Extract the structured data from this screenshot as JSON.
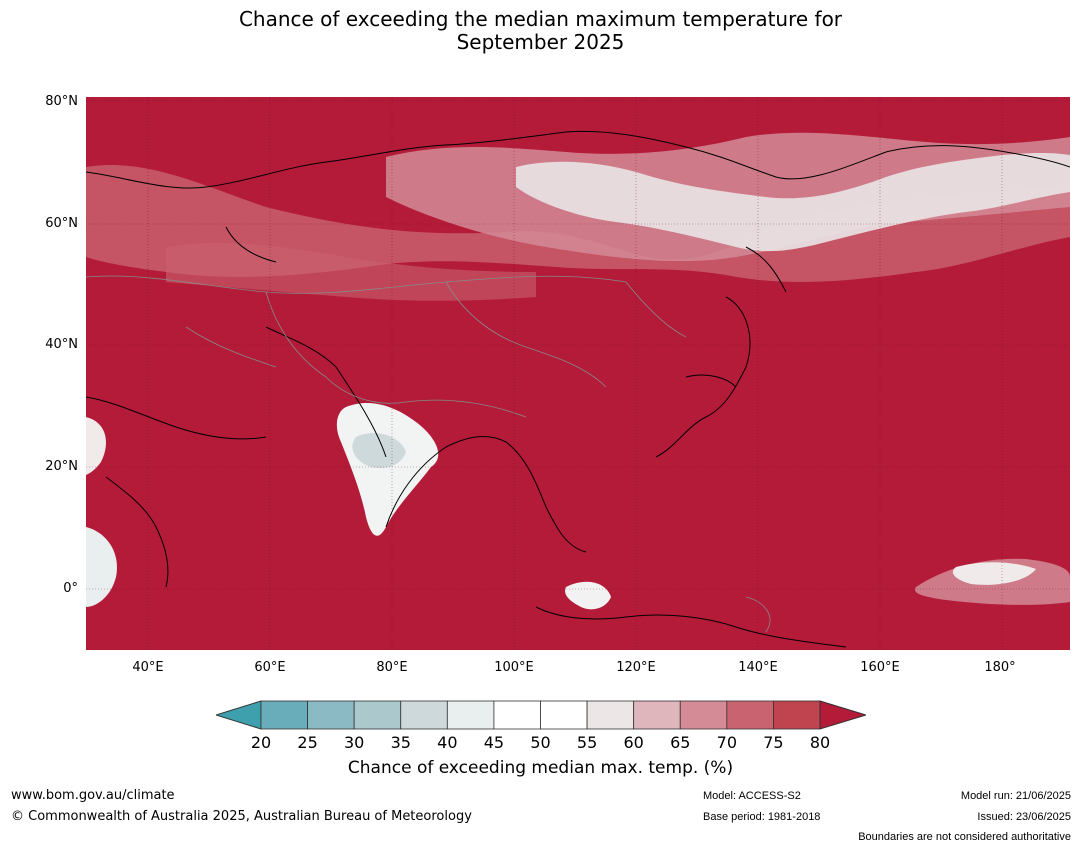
{
  "title_line1": "Chance of exceeding the median maximum temperature for",
  "title_line2": "September 2025",
  "map": {
    "background_color": "#b41b39",
    "lat_labels": [
      "80°N",
      "60°N",
      "40°N",
      "20°N",
      "0°"
    ],
    "lon_labels": [
      "40°E",
      "60°E",
      "80°E",
      "100°E",
      "120°E",
      "140°E",
      "160°E",
      "180°"
    ]
  },
  "colorbar": {
    "ticks": [
      "20",
      "25",
      "30",
      "35",
      "40",
      "45",
      "50",
      "55",
      "60",
      "65",
      "70",
      "75",
      "80"
    ],
    "colors": [
      "#3fa0ad",
      "#6aadba",
      "#8bbac4",
      "#abc8cd",
      "#cdd9db",
      "#e9eeef",
      "#ffffff",
      "#ffffff",
      "#ece6e7",
      "#dfb6bc",
      "#d48b96",
      "#c9636f",
      "#bf444f",
      "#b41b39"
    ],
    "label": "Chance of exceeding median max. temp. (%)"
  },
  "footer": {
    "website": "www.bom.gov.au/climate",
    "copyright": "© Commonwealth of Australia 2025, Australian Bureau of Meteorology",
    "model": "Model: ACCESS-S2",
    "base_period": "Base period: 1981-2018",
    "model_run": "Model run: 21/06/2025",
    "issued": "Issued: 23/06/2025",
    "disclaimer": "Boundaries are not considered authoritative"
  }
}
